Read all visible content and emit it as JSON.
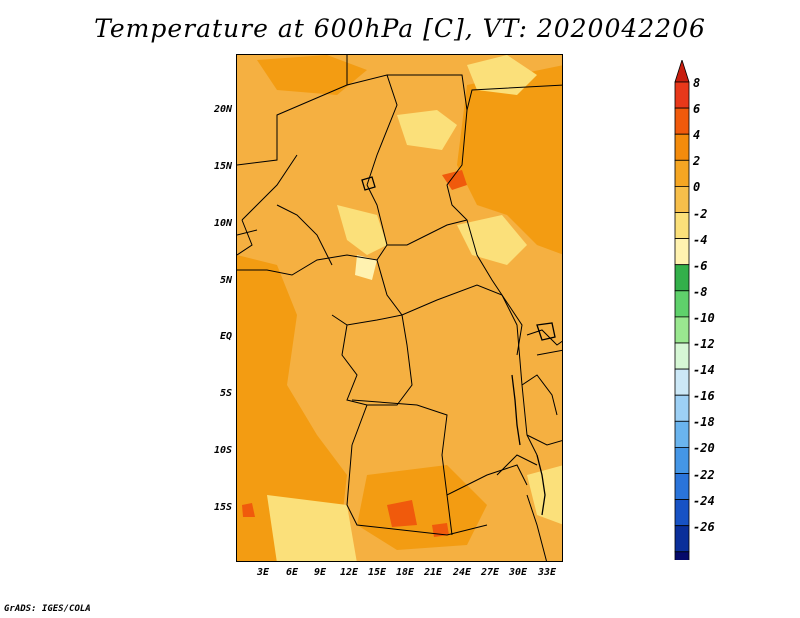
{
  "title": "Temperature at 600hPa [C], VT: 2020042206",
  "credit": "GrADS: IGES/COLA",
  "map": {
    "variable": "Temperature",
    "level": "600hPa",
    "units": "C",
    "valid_time": "2020042206",
    "lat_labels": [
      "20N",
      "15N",
      "10N",
      "5N",
      "EQ",
      "5S",
      "10S",
      "15S"
    ],
    "lon_labels": [
      "3E",
      "6E",
      "9E",
      "12E",
      "15E",
      "18E",
      "21E",
      "24E",
      "27E",
      "30E",
      "33E"
    ]
  },
  "colorbar": {
    "labels": [
      "8",
      "6",
      "4",
      "2",
      "0",
      "-2",
      "-4",
      "-6",
      "-8",
      "-10",
      "-12",
      "-14",
      "-16",
      "-18",
      "-20",
      "-22",
      "-24",
      "-26"
    ],
    "colors": [
      "#e8381a",
      "#f05a0c",
      "#f38b0c",
      "#f5a623",
      "#f7bf4b",
      "#fbe07a",
      "#fff2b0",
      "#33b04a",
      "#5fd16b",
      "#9ae890",
      "#d6f7d5",
      "#cce8f7",
      "#9dd0f5",
      "#6ab4ee",
      "#4496e6",
      "#2a74da",
      "#1752c4",
      "#0a2f9a",
      "#050a6a"
    ],
    "top_arrow_color": "#c81e0f",
    "bottom_arrow_color": "#dcd6f5"
  }
}
